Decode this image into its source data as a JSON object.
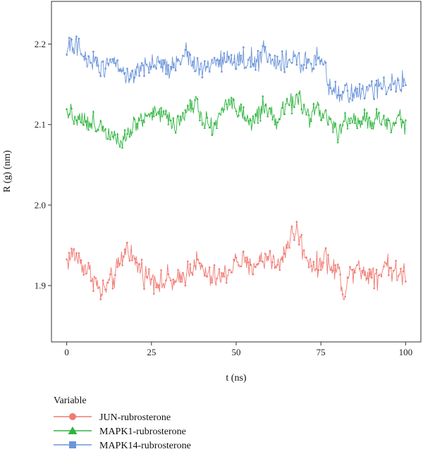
{
  "chart_data": {
    "type": "line",
    "title": "",
    "xlabel": "t (ns)",
    "ylabel": "R (g) (nm)",
    "xlim": [
      -4.5,
      104.5
    ],
    "ylim": [
      1.83,
      2.253
    ],
    "xticks": [
      0,
      25,
      50,
      75,
      100
    ],
    "xtick_labels": [
      "0",
      "25",
      "50",
      "75",
      "100"
    ],
    "yticks": [
      1.9,
      2.0,
      2.1,
      2.2
    ],
    "ytick_labels": [
      "1.9",
      "2.0",
      "2.1",
      "2.2"
    ],
    "grid": false,
    "legend": {
      "title": "Variable",
      "position": "bottom-left"
    },
    "series": [
      {
        "name": "JUN-rubrosterone",
        "color": "#F07A72",
        "marker": "circle",
        "points": [
          [
            0,
            1.93
          ],
          [
            2,
            1.94
          ],
          [
            4,
            1.93
          ],
          [
            6,
            1.92
          ],
          [
            8,
            1.91
          ],
          [
            10,
            1.89
          ],
          [
            12,
            1.9
          ],
          [
            14,
            1.91
          ],
          [
            16,
            1.93
          ],
          [
            18,
            1.95
          ],
          [
            20,
            1.93
          ],
          [
            22,
            1.92
          ],
          [
            24,
            1.91
          ],
          [
            26,
            1.91
          ],
          [
            28,
            1.9
          ],
          [
            30,
            1.91
          ],
          [
            32,
            1.9
          ],
          [
            34,
            1.91
          ],
          [
            36,
            1.92
          ],
          [
            38,
            1.93
          ],
          [
            40,
            1.92
          ],
          [
            42,
            1.91
          ],
          [
            44,
            1.91
          ],
          [
            46,
            1.91
          ],
          [
            48,
            1.92
          ],
          [
            50,
            1.93
          ],
          [
            52,
            1.93
          ],
          [
            54,
            1.92
          ],
          [
            56,
            1.93
          ],
          [
            58,
            1.93
          ],
          [
            60,
            1.94
          ],
          [
            62,
            1.92
          ],
          [
            64,
            1.94
          ],
          [
            66,
            1.96
          ],
          [
            68,
            1.97
          ],
          [
            70,
            1.94
          ],
          [
            72,
            1.93
          ],
          [
            74,
            1.92
          ],
          [
            76,
            1.94
          ],
          [
            78,
            1.92
          ],
          [
            80,
            1.92
          ],
          [
            82,
            1.89
          ],
          [
            84,
            1.92
          ],
          [
            86,
            1.93
          ],
          [
            88,
            1.91
          ],
          [
            90,
            1.92
          ],
          [
            92,
            1.91
          ],
          [
            94,
            1.93
          ],
          [
            96,
            1.92
          ],
          [
            98,
            1.91
          ],
          [
            100,
            1.92
          ]
        ],
        "noise": 0.013
      },
      {
        "name": "MAPK1-rubrosterone",
        "color": "#2DB53E",
        "marker": "triangle",
        "points": [
          [
            0,
            2.12
          ],
          [
            2,
            2.11
          ],
          [
            4,
            2.11
          ],
          [
            6,
            2.1
          ],
          [
            8,
            2.1
          ],
          [
            10,
            2.1
          ],
          [
            12,
            2.09
          ],
          [
            14,
            2.09
          ],
          [
            16,
            2.08
          ],
          [
            18,
            2.09
          ],
          [
            20,
            2.1
          ],
          [
            22,
            2.11
          ],
          [
            24,
            2.11
          ],
          [
            26,
            2.12
          ],
          [
            28,
            2.11
          ],
          [
            30,
            2.11
          ],
          [
            32,
            2.1
          ],
          [
            34,
            2.11
          ],
          [
            36,
            2.12
          ],
          [
            38,
            2.13
          ],
          [
            40,
            2.11
          ],
          [
            42,
            2.1
          ],
          [
            44,
            2.1
          ],
          [
            46,
            2.12
          ],
          [
            48,
            2.13
          ],
          [
            50,
            2.12
          ],
          [
            52,
            2.11
          ],
          [
            54,
            2.1
          ],
          [
            56,
            2.11
          ],
          [
            58,
            2.12
          ],
          [
            60,
            2.11
          ],
          [
            62,
            2.1
          ],
          [
            64,
            2.12
          ],
          [
            66,
            2.13
          ],
          [
            68,
            2.13
          ],
          [
            70,
            2.12
          ],
          [
            72,
            2.11
          ],
          [
            74,
            2.12
          ],
          [
            76,
            2.11
          ],
          [
            78,
            2.1
          ],
          [
            80,
            2.09
          ],
          [
            82,
            2.1
          ],
          [
            84,
            2.11
          ],
          [
            86,
            2.1
          ],
          [
            88,
            2.11
          ],
          [
            90,
            2.1
          ],
          [
            92,
            2.11
          ],
          [
            94,
            2.1
          ],
          [
            96,
            2.1
          ],
          [
            98,
            2.11
          ],
          [
            100,
            2.1
          ]
        ],
        "noise": 0.011
      },
      {
        "name": "MAPK14-rubrosterone",
        "color": "#6C95DA",
        "marker": "square",
        "points": [
          [
            0,
            2.19
          ],
          [
            2,
            2.2
          ],
          [
            4,
            2.19
          ],
          [
            6,
            2.18
          ],
          [
            8,
            2.18
          ],
          [
            10,
            2.17
          ],
          [
            12,
            2.18
          ],
          [
            14,
            2.18
          ],
          [
            16,
            2.17
          ],
          [
            18,
            2.16
          ],
          [
            20,
            2.16
          ],
          [
            22,
            2.17
          ],
          [
            24,
            2.17
          ],
          [
            26,
            2.17
          ],
          [
            28,
            2.18
          ],
          [
            30,
            2.17
          ],
          [
            32,
            2.18
          ],
          [
            34,
            2.18
          ],
          [
            36,
            2.19
          ],
          [
            38,
            2.17
          ],
          [
            40,
            2.17
          ],
          [
            42,
            2.17
          ],
          [
            44,
            2.18
          ],
          [
            46,
            2.18
          ],
          [
            48,
            2.18
          ],
          [
            50,
            2.18
          ],
          [
            52,
            2.18
          ],
          [
            54,
            2.18
          ],
          [
            56,
            2.18
          ],
          [
            58,
            2.19
          ],
          [
            60,
            2.18
          ],
          [
            62,
            2.17
          ],
          [
            64,
            2.18
          ],
          [
            66,
            2.18
          ],
          [
            68,
            2.18
          ],
          [
            70,
            2.18
          ],
          [
            72,
            2.17
          ],
          [
            74,
            2.18
          ],
          [
            76,
            2.17
          ],
          [
            78,
            2.14
          ],
          [
            80,
            2.14
          ],
          [
            82,
            2.14
          ],
          [
            84,
            2.14
          ],
          [
            86,
            2.14
          ],
          [
            88,
            2.14
          ],
          [
            90,
            2.14
          ],
          [
            92,
            2.15
          ],
          [
            94,
            2.15
          ],
          [
            96,
            2.15
          ],
          [
            98,
            2.15
          ],
          [
            100,
            2.15
          ]
        ],
        "noise": 0.012
      }
    ]
  }
}
